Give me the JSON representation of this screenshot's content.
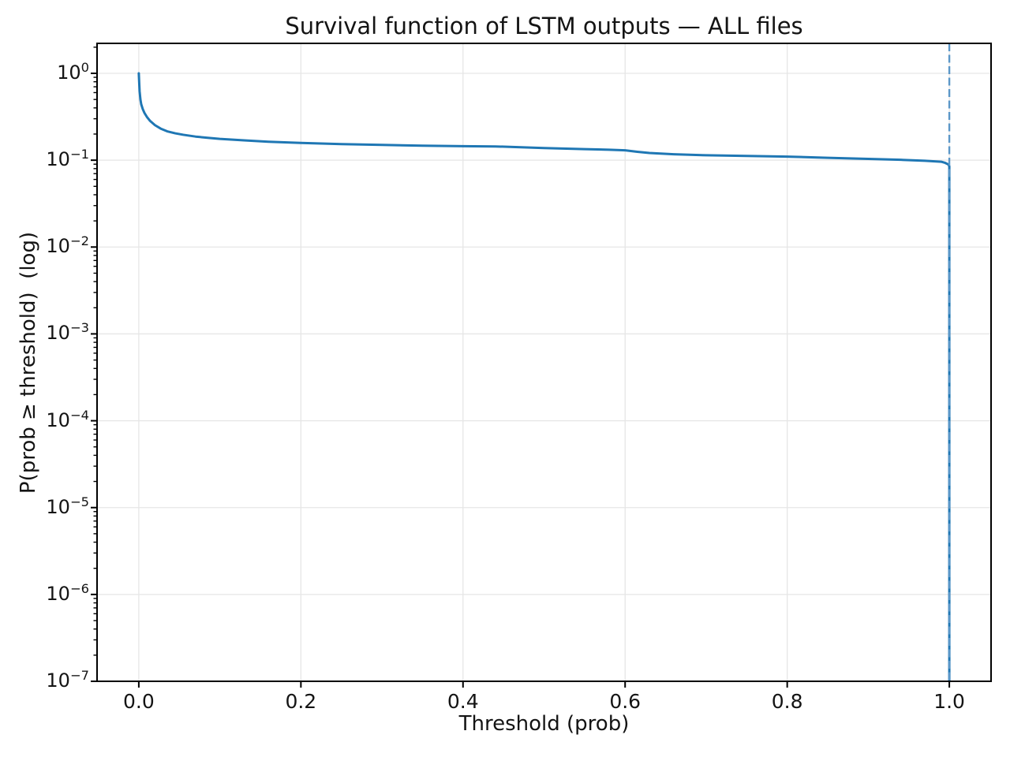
{
  "chart_data": {
    "type": "line",
    "title": "Survival function of LSTM outputs — ALL files",
    "xlabel": "Threshold (prob)",
    "ylabel": "P(prob ≥ threshold)  (log)",
    "grid": true,
    "legend_position": "none",
    "x_axis": {
      "ticks": [
        0.0,
        0.2,
        0.4,
        0.6,
        0.8,
        1.0
      ],
      "tick_labels": [
        "0.0",
        "0.2",
        "0.4",
        "0.6",
        "0.8",
        "1.0"
      ],
      "lim": [
        -0.0515,
        1.0515
      ]
    },
    "y_axis": {
      "scale": "log",
      "tick_exponents": [
        0,
        -1,
        -2,
        -3,
        -4,
        -5,
        -6,
        -7
      ],
      "tick_labels": [
        {
          "base": "10",
          "exp": "0"
        },
        {
          "base": "10",
          "exp": "−1"
        },
        {
          "base": "10",
          "exp": "−2"
        },
        {
          "base": "10",
          "exp": "−3"
        },
        {
          "base": "10",
          "exp": "−4"
        },
        {
          "base": "10",
          "exp": "−5"
        },
        {
          "base": "10",
          "exp": "−6"
        },
        {
          "base": "10",
          "exp": "−7"
        }
      ],
      "minor_mantissas": [
        2,
        3,
        4,
        5,
        6,
        7,
        8,
        9
      ],
      "lim_exponents": [
        -7,
        0.345
      ]
    },
    "series": [
      {
        "name": "survival_curve",
        "color": "#1f77b4",
        "line_style": "solid",
        "line_width": 3,
        "points": [
          [
            0.0,
            1.0
          ],
          [
            0.0005,
            0.78
          ],
          [
            0.001,
            0.62
          ],
          [
            0.002,
            0.5
          ],
          [
            0.003,
            0.44
          ],
          [
            0.005,
            0.385
          ],
          [
            0.007,
            0.35
          ],
          [
            0.01,
            0.315
          ],
          [
            0.014,
            0.283
          ],
          [
            0.02,
            0.253
          ],
          [
            0.027,
            0.231
          ],
          [
            0.035,
            0.215
          ],
          [
            0.045,
            0.204
          ],
          [
            0.055,
            0.196
          ],
          [
            0.07,
            0.187
          ],
          [
            0.085,
            0.181
          ],
          [
            0.1,
            0.176
          ],
          [
            0.13,
            0.169
          ],
          [
            0.16,
            0.163
          ],
          [
            0.2,
            0.158
          ],
          [
            0.25,
            0.153
          ],
          [
            0.3,
            0.15
          ],
          [
            0.35,
            0.147
          ],
          [
            0.4,
            0.145
          ],
          [
            0.44,
            0.144
          ],
          [
            0.5,
            0.138
          ],
          [
            0.55,
            0.134
          ],
          [
            0.58,
            0.132
          ],
          [
            0.6,
            0.13
          ],
          [
            0.615,
            0.125
          ],
          [
            0.63,
            0.121
          ],
          [
            0.66,
            0.117
          ],
          [
            0.7,
            0.114
          ],
          [
            0.75,
            0.112
          ],
          [
            0.8,
            0.11
          ],
          [
            0.85,
            0.1065
          ],
          [
            0.9,
            0.1035
          ],
          [
            0.94,
            0.101
          ],
          [
            0.97,
            0.0985
          ],
          [
            0.99,
            0.096
          ],
          [
            0.995,
            0.093
          ],
          [
            0.999,
            0.089
          ],
          [
            1.0,
            0.085
          ],
          [
            1.0,
            1e-07
          ]
        ]
      },
      {
        "name": "threshold_vline",
        "color": "#5b97c8",
        "line_style": "dashed",
        "line_width": 2.4,
        "vline_x": 1.0
      }
    ],
    "style": {
      "grid_color": "#e6e6e6",
      "spine_color": "#000000",
      "tick_color": "#000000",
      "background": "#ffffff"
    }
  }
}
